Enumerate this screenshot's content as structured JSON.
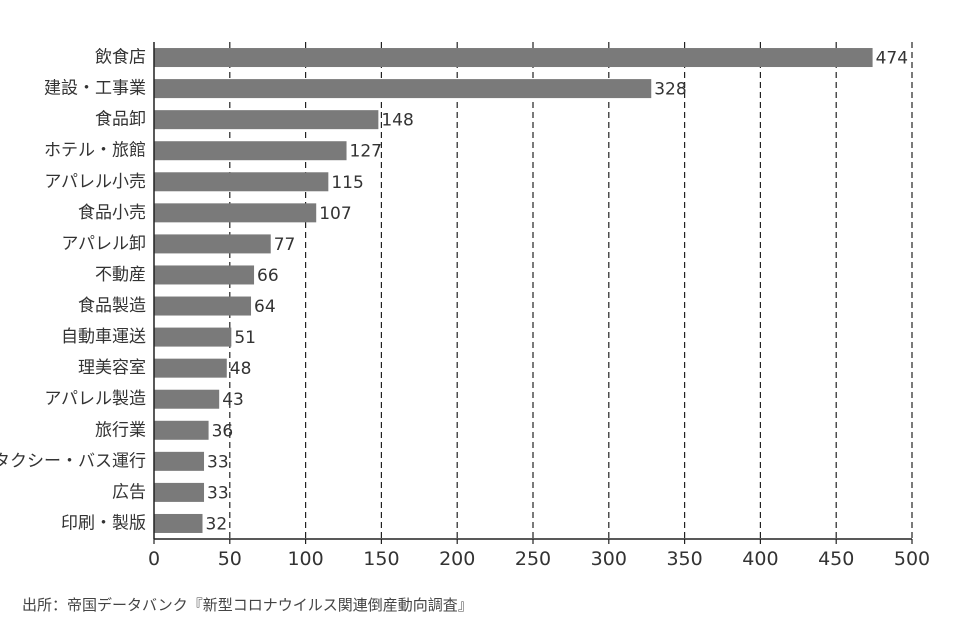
{
  "chart_data": {
    "type": "bar",
    "orientation": "horizontal",
    "categories": [
      "飲食店",
      "建設・工事業",
      "食品卸",
      "ホテル・旅館",
      "アパレル小売",
      "食品小売",
      "アパレル卸",
      "不動産",
      "食品製造",
      "自動車運送",
      "理美容室",
      "アパレル製造",
      "旅行業",
      "タクシー・バス運行",
      "広告",
      "印刷・製版"
    ],
    "values": [
      474,
      328,
      148,
      127,
      115,
      107,
      77,
      66,
      64,
      51,
      48,
      43,
      36,
      33,
      33,
      32
    ],
    "xlim": [
      0,
      500
    ],
    "xticks": [
      0,
      50,
      100,
      150,
      200,
      250,
      300,
      350,
      400,
      450,
      500
    ],
    "grid": "vertical dashed",
    "bar_color": "#7a7a7a"
  },
  "source_note": "出所：帝国データバンク『新型コロナウイルス関連倒産動向調査』"
}
